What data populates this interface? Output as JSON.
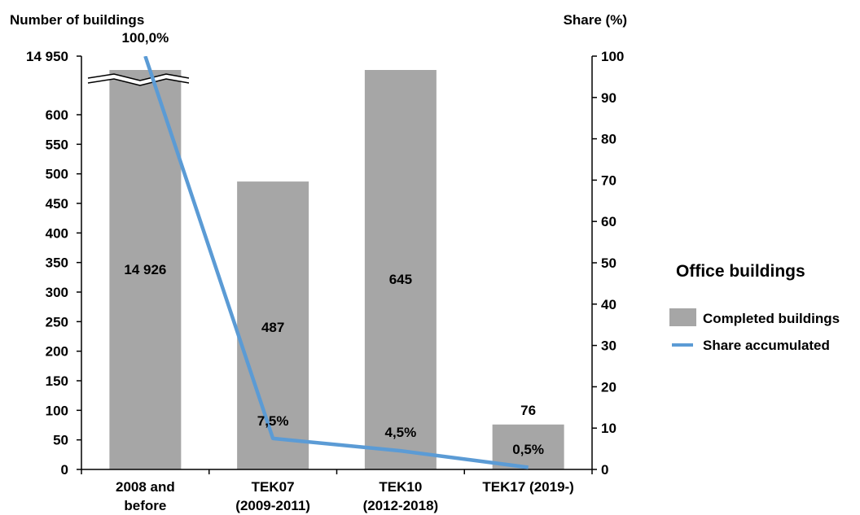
{
  "chart_data": {
    "type": "bar",
    "title": "",
    "ylabel": "Number of buildings",
    "y2label": "Share (%)",
    "categories": [
      [
        "2008 and",
        "before"
      ],
      [
        "TEK07",
        "(2009-2011)"
      ],
      [
        "TEK10",
        "(2012-2018)"
      ],
      [
        "TEK17 (2019-)"
      ]
    ],
    "left_axis": {
      "ticks": [
        "0",
        "50",
        "100",
        "150",
        "200",
        "250",
        "300",
        "350",
        "400",
        "450",
        "500",
        "550",
        "600"
      ],
      "break_top_tick": "14 950",
      "ylim": [
        0,
        600
      ],
      "axis_break": true
    },
    "right_axis": {
      "ticks": [
        "0",
        "10",
        "20",
        "30",
        "40",
        "50",
        "60",
        "70",
        "80",
        "90",
        "100"
      ],
      "ylim": [
        0,
        100
      ]
    },
    "legend": {
      "title": "Office buildings",
      "position": "right",
      "entries": [
        "Completed buildings",
        "Share accumulated"
      ]
    },
    "series": [
      {
        "name": "Completed buildings",
        "type": "bar",
        "axis": "left",
        "values": [
          14926,
          487,
          645,
          76
        ],
        "labels": [
          "14 926",
          "487",
          "645",
          "76"
        ],
        "color": "#a6a6a6"
      },
      {
        "name": "Share accumulated",
        "type": "line",
        "axis": "right",
        "values": [
          100.0,
          7.5,
          4.5,
          0.5
        ],
        "labels": [
          "100,0%",
          "7,5%",
          "4,5%",
          "0,5%"
        ],
        "color": "#5b9bd5"
      }
    ]
  }
}
